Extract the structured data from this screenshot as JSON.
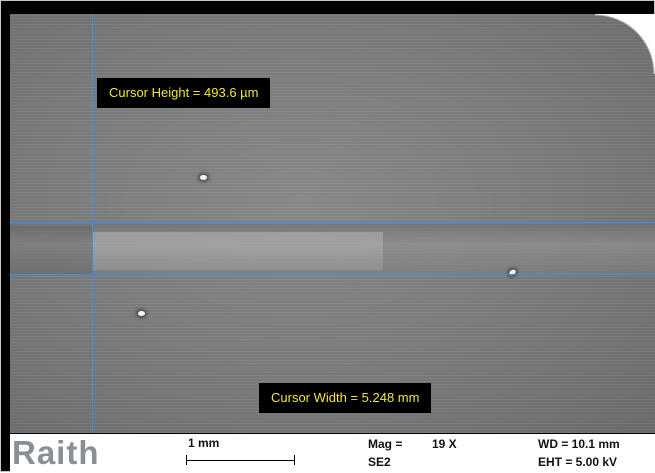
{
  "measurements": {
    "cursor_height": "Cursor Height = 493.6 µm",
    "cursor_width": "Cursor Width = 5.248 mm"
  },
  "info_bar": {
    "logo": "Raith",
    "scale_bar_label": "1 mm",
    "mag_label": "Mag =",
    "mag_value": "19 X",
    "detector": "SE2",
    "working_distance": "WD = 10.1 mm",
    "eht": "EHT =  5.00 kV"
  },
  "colors": {
    "cursor": "#3a8cff",
    "label_text": "#f5e43a",
    "label_background": "#000000",
    "logo": "#8a8f96"
  }
}
